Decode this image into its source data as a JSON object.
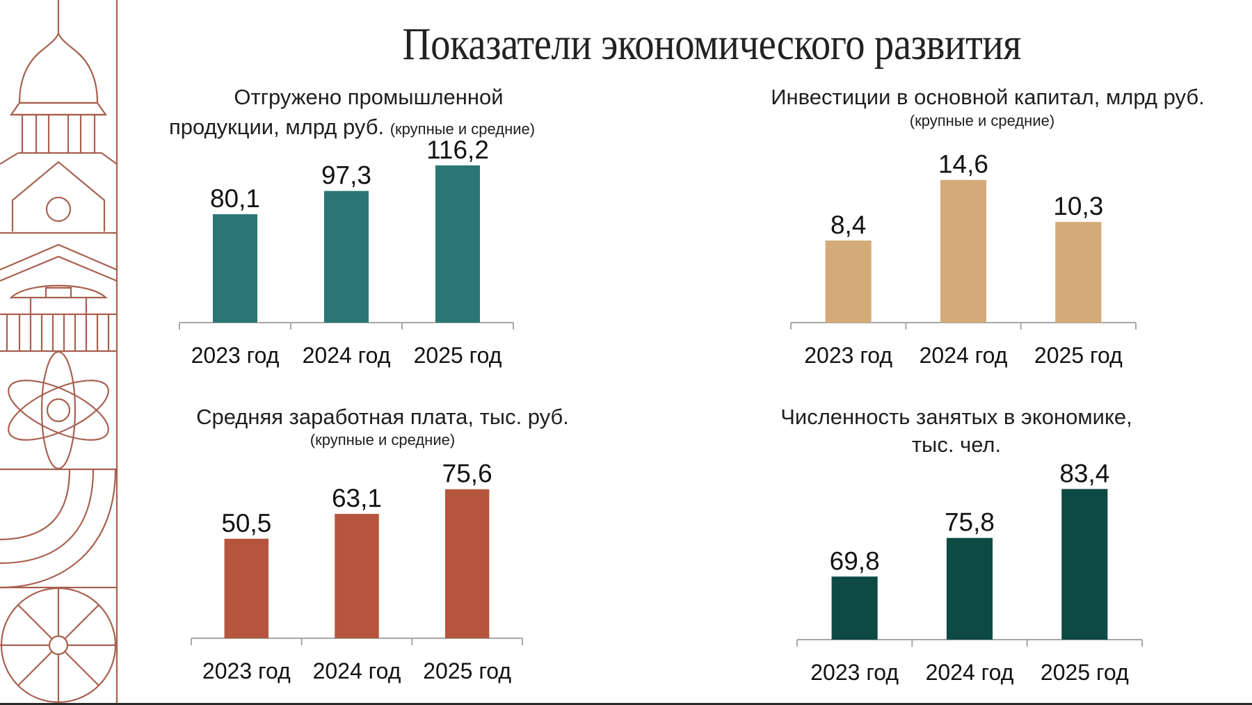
{
  "page": {
    "title": "Показатели экономического развития"
  },
  "colors": {
    "decor_stroke": "#A8604F",
    "axis": "#A6A6A6",
    "bottom_bar": "#2A2A2A"
  },
  "decor": {
    "icons": [
      "dome-icon",
      "gable-house-icon",
      "roof-facade-icon",
      "colonnade-icon",
      "atom-icon",
      "arcs-icon",
      "wheel-icon"
    ]
  },
  "chart_data": [
    {
      "type": "bar",
      "title_line1": "Отгружено промышленной",
      "title_line2": "продукции, млрд руб.",
      "title_note": "(крупные и средние)",
      "categories": [
        "2023 год",
        "2024 год",
        "2025 год"
      ],
      "values": [
        80.1,
        97.3,
        116.2
      ],
      "value_labels": [
        "80,1",
        "97,3",
        "116,2"
      ],
      "ylim": [
        0,
        130
      ],
      "color": "#2B7574",
      "grid": false,
      "legend": "none"
    },
    {
      "type": "bar",
      "title_line1": "Инвестиции в основной капитал, млрд руб.",
      "title_note": "(крупные и средние)",
      "categories": [
        "2023 год",
        "2024 год",
        "2025 год"
      ],
      "values": [
        8.4,
        14.6,
        10.3
      ],
      "value_labels": [
        "8,4",
        "14,6",
        "10,3"
      ],
      "ylim": [
        0,
        17
      ],
      "color": "#D4AB78",
      "grid": false,
      "legend": "none"
    },
    {
      "type": "bar",
      "title_line1": "Средняя заработная плата, тыс. руб.",
      "title_note": "(крупные и средние)",
      "categories": [
        "2023 год",
        "2024 год",
        "2025 год"
      ],
      "values": [
        50.5,
        63.1,
        75.6
      ],
      "value_labels": [
        "50,5",
        "63,1",
        "75,6"
      ],
      "ylim": [
        0,
        85
      ],
      "color": "#B5553D",
      "grid": false,
      "legend": "none"
    },
    {
      "type": "bar",
      "title_line1": "Численность занятых в экономике,",
      "title_line2": "тыс. чел.",
      "categories": [
        "2023 год",
        "2024 год",
        "2025 год"
      ],
      "values": [
        69.8,
        75.8,
        83.4
      ],
      "value_labels": [
        "69,8",
        "75,8",
        "83,4"
      ],
      "ylim": [
        60,
        87
      ],
      "color": "#0E4A44",
      "grid": false,
      "legend": "none"
    }
  ]
}
